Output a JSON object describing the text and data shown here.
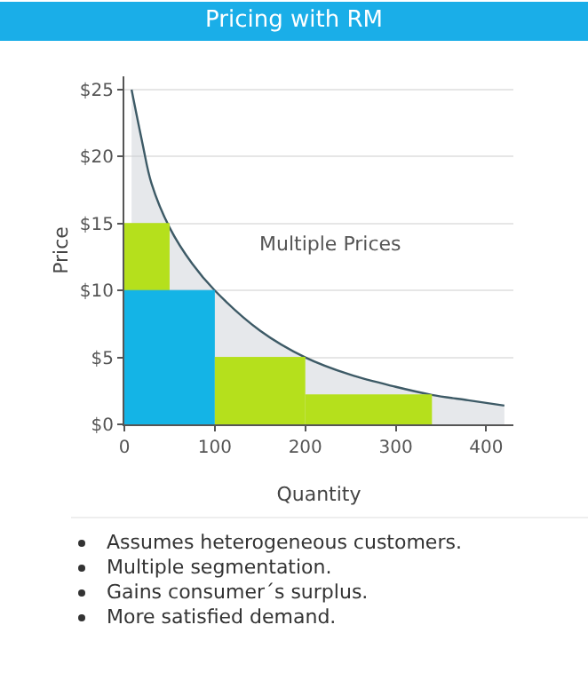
{
  "chart_data": {
    "type": "area",
    "title": "Pricing with RM",
    "xlabel": "Quantity",
    "ylabel": "Price",
    "xlim": [
      0,
      430
    ],
    "xticks": [
      0,
      100,
      200,
      300,
      400
    ],
    "ylim": [
      0,
      26
    ],
    "yticks": [
      {
        "value": 0,
        "label": "$0"
      },
      {
        "value": 5,
        "label": "$5"
      },
      {
        "value": 10,
        "label": "$10"
      },
      {
        "value": 15,
        "label": "$15"
      },
      {
        "value": 20,
        "label": "$20"
      },
      {
        "value": 25,
        "label": "$25"
      }
    ],
    "grid": "y",
    "marker": "none",
    "series": [
      {
        "color": "#3d5a66",
        "x": [
          8,
          20,
          30,
          50,
          75,
          100,
          150,
          200,
          250,
          300,
          340,
          380,
          420
        ],
        "values": [
          25,
          21,
          18,
          14.7,
          12,
          10,
          7,
          5,
          3.7,
          2.8,
          2.2,
          1.8,
          1.4
        ]
      },
      {
        "color": "#b5e01c",
        "x": [
          0,
          50
        ],
        "values": [
          15,
          15
        ]
      },
      {
        "color": "#14b4e6",
        "x": [
          0,
          100
        ],
        "values": [
          10,
          10
        ]
      },
      {
        "color": "#b5e01c",
        "x": [
          100,
          200
        ],
        "values": [
          5,
          5
        ]
      },
      {
        "color": "#b5e01c",
        "x": [
          200,
          340
        ],
        "values": [
          2.2,
          2.2
        ]
      }
    ],
    "annotations": [
      "Multiple Prices",
      "Assumes heterogeneous customers.",
      "Multiple segmentation.",
      "Gains consumer´s surplus.",
      "More satisfied demand."
    ]
  }
}
